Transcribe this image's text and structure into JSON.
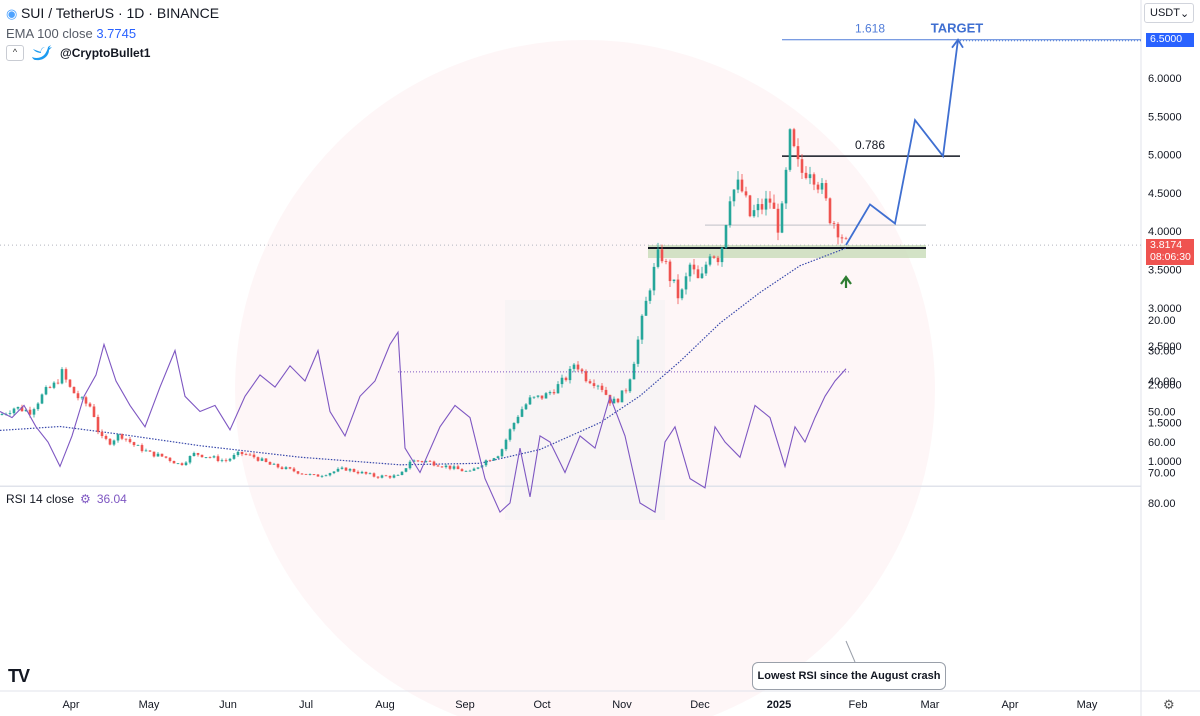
{
  "header": {
    "symbol": "SUI / TetherUS · 1D · BINANCE",
    "ema_label": "EMA 100 close",
    "ema_value": "3.7745",
    "collapse_glyph": "^",
    "twitter_handle": "@CryptoBullet1",
    "icons": [
      "sui-logo-icon",
      "twitter-bird-icon"
    ]
  },
  "currency": {
    "label": "USDT",
    "caret": "⌄"
  },
  "price_tag": {
    "price": "3.8174",
    "countdown": "08:06:30",
    "color": "#ef5350"
  },
  "target_tag": {
    "price": "6.5000",
    "color": "#2962ff"
  },
  "rsi": {
    "label": "RSI 14 close",
    "value": "36.04",
    "color": "#7e57c2"
  },
  "annotation": {
    "note": "Lowest RSI since the August crash"
  },
  "branding": {
    "logo": "TV",
    "settings_icon": "gear-icon"
  },
  "chart_data": [
    {
      "type": "line",
      "subtype": "candlestick",
      "x_axis": {
        "ticks": [
          "Apr",
          "May",
          "Jun",
          "Jul",
          "Aug",
          "Sep",
          "Oct",
          "Nov",
          "Dec",
          "2025",
          "Feb",
          "Mar",
          "Apr",
          "May"
        ]
      },
      "y_axis": {
        "ticks": [
          "6.0000",
          "5.5000",
          "5.0000",
          "4.5000",
          "4.0000",
          "3.5000",
          "3.0000",
          "2.5000",
          "2.0000",
          "1.5000",
          "1.0000"
        ],
        "range": [
          0.7,
          6.8
        ],
        "position": "right"
      },
      "price_path": {
        "x": [
          0,
          15,
          30,
          45,
          55,
          62,
          70,
          80,
          92,
          100,
          110,
          120,
          135,
          150,
          165,
          180,
          195,
          210,
          225,
          240,
          255,
          270,
          285,
          300,
          315,
          330,
          345,
          360,
          375,
          390,
          400,
          410,
          425,
          440,
          455,
          470,
          485,
          500,
          510,
          520,
          530,
          545,
          560,
          570,
          575,
          585,
          600,
          612,
          625,
          632,
          640,
          650,
          660,
          670,
          680,
          690,
          700,
          710,
          720,
          730,
          740,
          750,
          760,
          770,
          780,
          790,
          800,
          810,
          820,
          830,
          840,
          846
        ],
        "y": [
          1.6,
          1.7,
          1.65,
          1.9,
          2.0,
          2.15,
          1.95,
          1.8,
          1.7,
          1.3,
          1.25,
          1.35,
          1.2,
          1.1,
          1.05,
          0.95,
          1.1,
          1.05,
          1.0,
          1.1,
          1.05,
          0.95,
          0.9,
          0.85,
          0.8,
          0.85,
          0.9,
          0.85,
          0.8,
          0.8,
          0.8,
          1.0,
          1.0,
          0.95,
          0.9,
          0.85,
          1.0,
          1.1,
          1.4,
          1.65,
          1.8,
          1.85,
          2.0,
          2.15,
          2.3,
          2.1,
          2.0,
          1.75,
          1.9,
          2.2,
          2.7,
          3.3,
          3.75,
          3.4,
          3.1,
          3.55,
          3.3,
          3.75,
          3.65,
          4.5,
          4.6,
          4.2,
          4.3,
          4.4,
          4.0,
          5.2,
          4.75,
          4.85,
          4.6,
          4.2,
          4.0,
          3.82
        ]
      },
      "ema_path": {
        "x": [
          0,
          60,
          120,
          200,
          300,
          400,
          480,
          540,
          600,
          640,
          680,
          720,
          760,
          800,
          846
        ],
        "y": [
          1.4,
          1.45,
          1.35,
          1.2,
          1.05,
          0.95,
          0.97,
          1.15,
          1.5,
          1.85,
          2.3,
          2.8,
          3.2,
          3.55,
          3.78
        ]
      },
      "support_zone": {
        "from": 3.65,
        "to": 3.82
      },
      "support_level": 3.78,
      "fib_levels": [
        {
          "label": "0.786",
          "value": 4.98
        },
        {
          "label": "1.618",
          "value": 6.5
        }
      ],
      "target_label": "TARGET",
      "projection": {
        "x": [
          846,
          870,
          895,
          915,
          943,
          958
        ],
        "y": [
          3.82,
          4.35,
          4.1,
          5.45,
          4.98,
          6.5
        ]
      }
    },
    {
      "type": "line",
      "title": "RSI 14",
      "y_axis": {
        "ticks": [
          "80.00",
          "70.00",
          "60.00",
          "50.00",
          "40.00",
          "30.00",
          "20.00"
        ],
        "range": [
          18,
          86
        ],
        "band": [
          30,
          70
        ]
      },
      "values_x": [
        0,
        12,
        24,
        36,
        48,
        60,
        72,
        84,
        96,
        104,
        116,
        130,
        145,
        160,
        175,
        185,
        200,
        215,
        230,
        245,
        260,
        275,
        290,
        305,
        318,
        330,
        345,
        360,
        375,
        390,
        398,
        405,
        420,
        440,
        455,
        470,
        485,
        500,
        510,
        520,
        530,
        540,
        550,
        565,
        580,
        595,
        610,
        625,
        640,
        655,
        665,
        675,
        690,
        705,
        715,
        725,
        740,
        755,
        770,
        785,
        795,
        805,
        815,
        825,
        835,
        846
      ],
      "values": [
        50,
        52,
        48,
        55,
        60,
        68,
        58,
        45,
        38,
        28,
        40,
        48,
        55,
        42,
        30,
        45,
        50,
        48,
        56,
        45,
        38,
        42,
        35,
        40,
        30,
        50,
        58,
        45,
        40,
        28,
        24,
        62,
        70,
        55,
        48,
        52,
        72,
        83,
        80,
        62,
        78,
        58,
        60,
        70,
        58,
        62,
        45,
        58,
        80,
        83,
        60,
        55,
        72,
        75,
        55,
        60,
        65,
        48,
        52,
        68,
        55,
        60,
        52,
        45,
        40,
        36
      ],
      "reference_value": 37
    }
  ]
}
